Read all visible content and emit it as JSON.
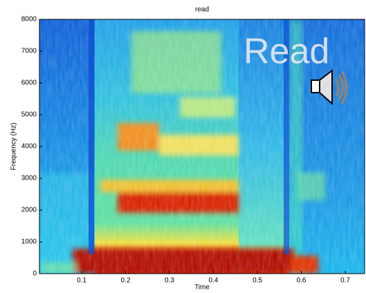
{
  "chart_data": {
    "type": "spectrogram",
    "title": "read",
    "xlabel": "Time",
    "ylabel": "Frequency (Hz)",
    "overlay_text": "Read",
    "xlim": [
      0.004,
      0.744
    ],
    "xticks": [
      0.1,
      0.2,
      0.3,
      0.4,
      0.5,
      0.6,
      0.7
    ],
    "ylim": [
      0,
      8000
    ],
    "yticks": [
      0,
      1000,
      2000,
      3000,
      4000,
      5000,
      6000,
      7000,
      8000
    ]
  }
}
